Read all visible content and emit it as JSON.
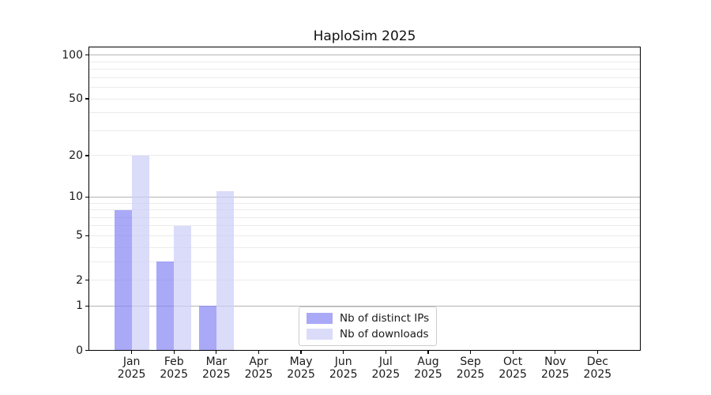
{
  "chart_data": {
    "type": "bar",
    "title": "HaploSim 2025",
    "categories": [
      "Jan 2025",
      "Feb 2025",
      "Mar 2025",
      "Apr 2025",
      "May 2025",
      "Jun 2025",
      "Jul 2025",
      "Aug 2025",
      "Sep 2025",
      "Oct 2025",
      "Nov 2025",
      "Dec 2025"
    ],
    "series": [
      {
        "name": "Nb of distinct IPs",
        "color_hex": "#8484f4",
        "alpha": 0.7,
        "values": [
          8,
          3,
          1,
          0,
          0,
          0,
          0,
          0,
          0,
          0,
          0,
          0
        ]
      },
      {
        "name": "Nb of downloads",
        "color_hex": "#ccccf8",
        "alpha": 0.7,
        "values": [
          20,
          6,
          11,
          0,
          0,
          0,
          0,
          0,
          0,
          0,
          0,
          0
        ]
      }
    ],
    "yscale": "log1p",
    "yticks": [
      0,
      1,
      2,
      5,
      10,
      20,
      50,
      100
    ],
    "grid_major_at": [
      1,
      10,
      100
    ],
    "ylim": [
      0,
      113
    ],
    "xlabel": "",
    "ylabel": "",
    "grid": true,
    "legend_position": "lower center",
    "axis_color": "#000000",
    "grid_major_color": "#b4b4b4",
    "grid_minor_color": "#ebebeb",
    "text_color": "#1a1a1a",
    "background_color": "#ffffff"
  }
}
